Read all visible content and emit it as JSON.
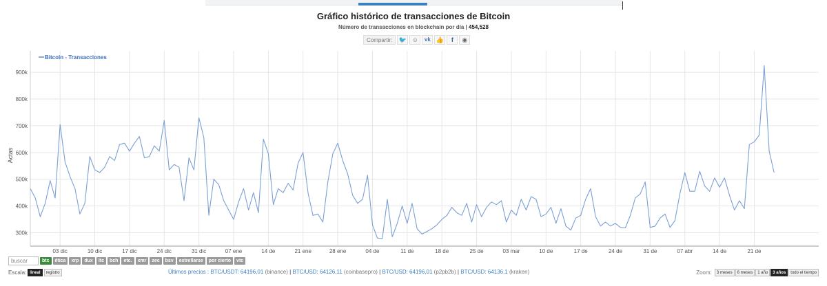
{
  "header": {
    "title": "Gráfico histórico de transacciones de Bitcoin",
    "subtitle_label": "Número de transacciones en blockchain por día |",
    "subtitle_value": "454,528"
  },
  "share": {
    "label": "Compartir:",
    "icons": [
      "twitter-icon",
      "reddit-icon",
      "vk-icon",
      "like-icon",
      "facebook-icon",
      "weibo-icon"
    ]
  },
  "chart_data": {
    "type": "line",
    "ylabel": "Actas",
    "ylim": [
      250000,
      980000
    ],
    "yticks": [
      300000,
      400000,
      500000,
      600000,
      700000,
      800000,
      900000
    ],
    "ytick_labels": [
      "300k",
      "400k",
      "500k",
      "600k",
      "700k",
      "800k",
      "900k"
    ],
    "xlim": [
      0,
      159
    ],
    "xticks": [
      {
        "x": 6,
        "label": [
          "03 dic"
        ]
      },
      {
        "x": 13,
        "label": [
          "10 dic"
        ]
      },
      {
        "x": 20,
        "label": [
          "17 dic"
        ]
      },
      {
        "x": 27,
        "label": [
          "24 dic"
        ]
      },
      {
        "x": 34,
        "label": [
          "31 dic"
        ]
      },
      {
        "x": 41,
        "label": [
          "07 ene"
        ]
      },
      {
        "x": 48,
        "label": [
          "14 de",
          "enero"
        ]
      },
      {
        "x": 55,
        "label": [
          "21 ene"
        ]
      },
      {
        "x": 62,
        "label": [
          "28 ene"
        ]
      },
      {
        "x": 69,
        "label": [
          "04 de",
          "febrero"
        ]
      },
      {
        "x": 76,
        "label": [
          "11 de",
          "febrero"
        ]
      },
      {
        "x": 83,
        "label": [
          "18 de",
          "febrero"
        ]
      },
      {
        "x": 90,
        "label": [
          "25 de",
          "febrero"
        ]
      },
      {
        "x": 97,
        "label": [
          "03 mar"
        ]
      },
      {
        "x": 104,
        "label": [
          "10 de",
          "marzo"
        ]
      },
      {
        "x": 111,
        "label": [
          "17 de",
          "marzo"
        ]
      },
      {
        "x": 118,
        "label": [
          "24 de",
          "marzo"
        ]
      },
      {
        "x": 125,
        "label": [
          "31 de",
          "marzo"
        ]
      },
      {
        "x": 132,
        "label": [
          "07 abr"
        ]
      },
      {
        "x": 139,
        "label": [
          "14 de",
          "abril"
        ]
      },
      {
        "x": 146,
        "label": [
          "21 de",
          "abril"
        ]
      }
    ],
    "grid": true,
    "legend": "top-left",
    "series": [
      {
        "name": "Bitcoin - Transacciones",
        "color": "#7b9fd4",
        "values": [
          465000,
          430000,
          360000,
          410000,
          495000,
          430000,
          705000,
          565000,
          510000,
          465000,
          370000,
          410000,
          585000,
          535000,
          525000,
          545000,
          585000,
          570000,
          630000,
          635000,
          605000,
          635000,
          660000,
          580000,
          585000,
          625000,
          605000,
          720000,
          535000,
          555000,
          545000,
          420000,
          580000,
          535000,
          730000,
          655000,
          365000,
          500000,
          480000,
          420000,
          385000,
          350000,
          415000,
          465000,
          385000,
          450000,
          375000,
          650000,
          595000,
          405000,
          465000,
          450000,
          485000,
          460000,
          560000,
          600000,
          450000,
          365000,
          370000,
          340000,
          490000,
          595000,
          635000,
          570000,
          520000,
          440000,
          410000,
          425000,
          515000,
          330000,
          280000,
          278000,
          425000,
          285000,
          335000,
          400000,
          335000,
          410000,
          315000,
          295000,
          305000,
          315000,
          330000,
          350000,
          365000,
          395000,
          375000,
          365000,
          410000,
          340000,
          405000,
          360000,
          395000,
          415000,
          405000,
          420000,
          340000,
          385000,
          365000,
          425000,
          385000,
          435000,
          425000,
          360000,
          370000,
          395000,
          335000,
          390000,
          325000,
          310000,
          355000,
          365000,
          425000,
          465000,
          360000,
          325000,
          340000,
          325000,
          335000,
          320000,
          318000,
          365000,
          430000,
          445000,
          490000,
          320000,
          325000,
          355000,
          370000,
          320000,
          345000,
          445000,
          525000,
          455000,
          455000,
          530000,
          475000,
          455000,
          505000,
          470000,
          505000,
          440000,
          385000,
          420000,
          390000,
          630000,
          640000,
          665000,
          925000,
          605000,
          525000
        ]
      }
    ]
  },
  "coins": {
    "search_placeholder": "buscar",
    "items": [
      "btc",
      "ética",
      "xrp",
      "dux",
      "ltc",
      "bch",
      "etc.",
      "xmr",
      "zec",
      "bsv",
      "estrellarse",
      "por cierto",
      "vtc"
    ]
  },
  "scale": {
    "label": "Escala:",
    "options": [
      "lineal",
      "registro"
    ]
  },
  "prices": {
    "label": "Últimos precios :",
    "items": [
      {
        "pair": "BTC/USDT: 64196,01",
        "exchange": "(binance)"
      },
      {
        "pair": "BTC/USD: 64126,11",
        "exchange": "(coinbasepro)"
      },
      {
        "pair": "BTC/USD: 64196,01",
        "exchange": "(p2pb2b)"
      },
      {
        "pair": "BTC/USD: 64136,1",
        "exchange": "(kraken)"
      }
    ]
  },
  "zoom": {
    "label": "Zoom:",
    "options": [
      "3 meses",
      "6 meses",
      "1 año",
      "3 años",
      "todo el tiempo"
    ]
  },
  "colors": {
    "line": "#7b9fd4",
    "legend_text": "#3d6fb5",
    "grid": "#e6e6e6",
    "active_coin": "#3d8b3d"
  }
}
